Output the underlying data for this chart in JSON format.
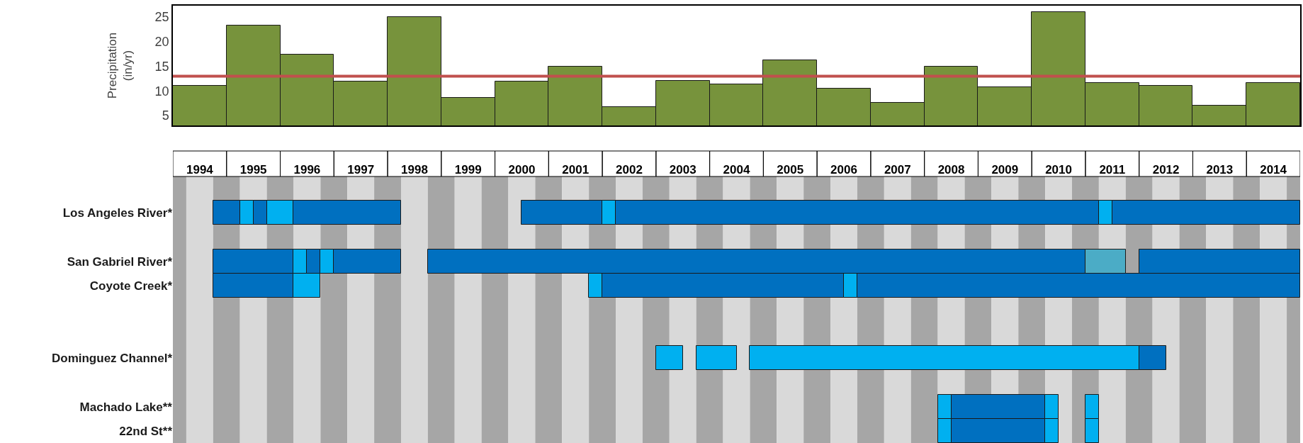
{
  "chart_data": [
    {
      "type": "bar",
      "ylabel": "Precipitation\n(in/yr)",
      "categories": [
        null,
        null,
        null,
        null,
        null,
        null,
        null,
        null,
        null,
        null,
        null,
        null,
        null,
        null,
        null,
        null,
        null,
        null,
        null,
        null,
        null
      ],
      "values": [
        11.0,
        23.3,
        17.4,
        11.9,
        25.0,
        8.6,
        11.9,
        14.9,
        6.7,
        12.1,
        11.3,
        16.2,
        10.5,
        7.6,
        14.9,
        10.8,
        26.0,
        11.6,
        11.0,
        7.0,
        11.6
      ],
      "color": "#77933c",
      "ylim": [
        3,
        27.3
      ],
      "yticks": [
        5,
        10,
        15,
        20,
        25
      ],
      "tick_labels": "y",
      "ref_lines": [
        {
          "axis": "y",
          "value": 13,
          "color": "#c0504d"
        }
      ]
    },
    {
      "type": "bar",
      "orientation": "horizontal",
      "categories": [
        null,
        "Los Angeles River*",
        null,
        "San Gabriel River*",
        "Coyote Creek*",
        null,
        null,
        "Dominguez Channel*",
        null,
        "Machado Lake**",
        "22nd St**"
      ],
      "xlim": [
        1994,
        2015
      ],
      "xticks": [
        {
          "value": 1994.5,
          "label": "1994"
        },
        {
          "value": 1995.5,
          "label": "1995"
        },
        {
          "value": 1996.5,
          "label": "1996"
        },
        {
          "value": 1997.5,
          "label": "1997"
        },
        {
          "value": 1998.5,
          "label": "1998"
        },
        {
          "value": 1999.5,
          "label": "1999"
        },
        {
          "value": 2000.5,
          "label": "2000"
        },
        {
          "value": 2001.5,
          "label": "2001"
        },
        {
          "value": 2002.5,
          "label": "2002"
        },
        {
          "value": 2003.5,
          "label": "2003"
        },
        {
          "value": 2004.5,
          "label": "2004"
        },
        {
          "value": 2005.5,
          "label": "2005"
        },
        {
          "value": 2006.5,
          "label": "2006"
        },
        {
          "value": 2007.5,
          "label": "2007"
        },
        {
          "value": 2008.5,
          "label": "2008"
        },
        {
          "value": 2009.5,
          "label": "2009"
        },
        {
          "value": 2010.5,
          "label": "2010"
        },
        {
          "value": 2011.5,
          "label": "2011"
        },
        {
          "value": 2012.5,
          "label": "2012"
        },
        {
          "value": 2013.5,
          "label": "2013"
        },
        {
          "value": 2014.5,
          "label": "2014"
        }
      ],
      "series": [
        {
          "values": [
            null,
            0.5,
            null,
            1.5,
            1.5,
            null,
            null,
            0.5,
            null,
            0.25,
            0.25
          ],
          "base": [
            null,
            1994.75,
            null,
            1994.75,
            1994.75,
            null,
            null,
            2003.0,
            null,
            2008.25,
            2008.25
          ],
          "colors": [
            null,
            "#0070c0",
            null,
            "#0070c0",
            "#0070c0",
            null,
            null,
            "#00b0f0",
            null,
            "#00b0f0",
            "#00b0f0"
          ]
        },
        {
          "values": [
            null,
            0.25,
            null,
            0.25,
            0.5,
            null,
            null,
            0.75,
            null,
            1.75,
            1.75
          ],
          "base": [
            null,
            1995.25,
            null,
            1996.25,
            1996.25,
            null,
            null,
            2003.75,
            null,
            2008.5,
            2008.5
          ],
          "colors": [
            null,
            "#00b0f0",
            null,
            "#00b0f0",
            "#00b0f0",
            null,
            null,
            "#00b0f0",
            null,
            "#0070c0",
            "#0070c0"
          ]
        },
        {
          "values": [
            null,
            0.25,
            null,
            0.25,
            0.25,
            null,
            null,
            7.25,
            null,
            0.25,
            0.25
          ],
          "base": [
            null,
            1995.5,
            null,
            1996.5,
            2001.75,
            null,
            null,
            2004.75,
            null,
            2010.25,
            2010.25
          ],
          "colors": [
            null,
            "#0070c0",
            null,
            "#0070c0",
            "#00b0f0",
            null,
            null,
            "#00b0f0",
            null,
            "#00b0f0",
            "#00b0f0"
          ]
        },
        {
          "values": [
            null,
            0.5,
            null,
            0.25,
            4.5,
            null,
            null,
            0.5,
            null,
            0.25,
            0.25
          ],
          "base": [
            null,
            1995.75,
            null,
            1996.75,
            2002.0,
            null,
            null,
            2012.0,
            null,
            2011.0,
            2011.0
          ],
          "colors": [
            null,
            "#00b0f0",
            null,
            "#00b0f0",
            "#0070c0",
            null,
            null,
            "#0070c0",
            null,
            "#00b0f0",
            "#00b0f0"
          ]
        },
        {
          "values": [
            null,
            2.0,
            null,
            1.25,
            0.25,
            null,
            null,
            null,
            null,
            null,
            null
          ],
          "base": [
            null,
            1996.25,
            null,
            1997.0,
            2006.5,
            null,
            null,
            null,
            null,
            null,
            null
          ],
          "colors": [
            null,
            "#0070c0",
            null,
            "#0070c0",
            "#00b0f0",
            null,
            null,
            null,
            null,
            null,
            null
          ]
        },
        {
          "values": [
            null,
            1.5,
            null,
            12.25,
            8.25,
            null,
            null,
            null,
            null,
            null,
            null
          ],
          "base": [
            null,
            2000.5,
            null,
            1998.75,
            2006.75,
            null,
            null,
            null,
            null,
            null,
            null
          ],
          "colors": [
            null,
            "#0070c0",
            null,
            "#0070c0",
            "#0070c0",
            null,
            null,
            null,
            null,
            null,
            null
          ]
        },
        {
          "values": [
            null,
            0.25,
            null,
            0.75,
            null,
            null,
            null,
            null,
            null,
            null,
            null
          ],
          "base": [
            null,
            2002.0,
            null,
            2011.0,
            null,
            null,
            null,
            null,
            null,
            null,
            null
          ],
          "colors": [
            null,
            "#00b0f0",
            null,
            "#4bacc6",
            null,
            null,
            null,
            null,
            null,
            null,
            null
          ]
        },
        {
          "values": [
            null,
            9.0,
            null,
            3.0,
            null,
            null,
            null,
            null,
            null,
            null,
            null
          ],
          "base": [
            null,
            2002.25,
            null,
            2012.0,
            null,
            null,
            null,
            null,
            null,
            null,
            null
          ],
          "colors": [
            null,
            "#0070c0",
            null,
            "#0070c0",
            null,
            null,
            null,
            null,
            null,
            null,
            null
          ]
        },
        {
          "values": [
            null,
            0.25,
            null,
            null,
            null,
            null,
            null,
            null,
            null,
            null,
            null
          ],
          "base": [
            null,
            2011.25,
            null,
            null,
            null,
            null,
            null,
            null,
            null,
            null,
            null
          ],
          "colors": [
            null,
            "#00b0f0",
            null,
            null,
            null,
            null,
            null,
            null,
            null,
            null,
            null
          ]
        },
        {
          "values": [
            null,
            3.5,
            null,
            null,
            null,
            null,
            null,
            null,
            null,
            null,
            null
          ],
          "base": [
            null,
            2011.5,
            null,
            null,
            null,
            null,
            null,
            null,
            null,
            null,
            null
          ],
          "colors": [
            null,
            "#0070c0",
            null,
            null,
            null,
            null,
            null,
            null,
            null,
            null,
            null
          ]
        }
      ],
      "bands": [
        {
          "axis": "x",
          "from": 1994,
          "to": 1994.25,
          "color": "#a6a6a6"
        },
        {
          "axis": "x",
          "from": 1994.25,
          "to": 1994.75,
          "color": "#d9d9d9"
        },
        {
          "axis": "x",
          "from": 1994.75,
          "to": 1995.25,
          "color": "#a6a6a6"
        },
        {
          "axis": "x",
          "from": 1995.25,
          "to": 1995.75,
          "color": "#d9d9d9"
        },
        {
          "axis": "x",
          "from": 1995.75,
          "to": 1996.25,
          "color": "#a6a6a6"
        },
        {
          "axis": "x",
          "from": 1996.25,
          "to": 1996.75,
          "color": "#d9d9d9"
        },
        {
          "axis": "x",
          "from": 1996.75,
          "to": 1997.25,
          "color": "#a6a6a6"
        },
        {
          "axis": "x",
          "from": 1997.25,
          "to": 1997.75,
          "color": "#d9d9d9"
        },
        {
          "axis": "x",
          "from": 1997.75,
          "to": 1998.25,
          "color": "#a6a6a6"
        },
        {
          "axis": "x",
          "from": 1998.25,
          "to": 1998.75,
          "color": "#d9d9d9"
        },
        {
          "axis": "x",
          "from": 1998.75,
          "to": 1999.25,
          "color": "#a6a6a6"
        },
        {
          "axis": "x",
          "from": 1999.25,
          "to": 1999.75,
          "color": "#d9d9d9"
        },
        {
          "axis": "x",
          "from": 1999.75,
          "to": 2000.25,
          "color": "#a6a6a6"
        },
        {
          "axis": "x",
          "from": 2000.25,
          "to": 2000.75,
          "color": "#d9d9d9"
        },
        {
          "axis": "x",
          "from": 2000.75,
          "to": 2001.25,
          "color": "#a6a6a6"
        },
        {
          "axis": "x",
          "from": 2001.25,
          "to": 2001.75,
          "color": "#d9d9d9"
        },
        {
          "axis": "x",
          "from": 2001.75,
          "to": 2002.25,
          "color": "#a6a6a6"
        },
        {
          "axis": "x",
          "from": 2002.25,
          "to": 2002.75,
          "color": "#d9d9d9"
        },
        {
          "axis": "x",
          "from": 2002.75,
          "to": 2003.25,
          "color": "#a6a6a6"
        },
        {
          "axis": "x",
          "from": 2003.25,
          "to": 2003.75,
          "color": "#d9d9d9"
        },
        {
          "axis": "x",
          "from": 2003.75,
          "to": 2004.25,
          "color": "#a6a6a6"
        },
        {
          "axis": "x",
          "from": 2004.25,
          "to": 2004.75,
          "color": "#d9d9d9"
        },
        {
          "axis": "x",
          "from": 2004.75,
          "to": 2005.25,
          "color": "#a6a6a6"
        },
        {
          "axis": "x",
          "from": 2005.25,
          "to": 2005.75,
          "color": "#d9d9d9"
        },
        {
          "axis": "x",
          "from": 2005.75,
          "to": 2006.25,
          "color": "#a6a6a6"
        },
        {
          "axis": "x",
          "from": 2006.25,
          "to": 2006.75,
          "color": "#d9d9d9"
        },
        {
          "axis": "x",
          "from": 2006.75,
          "to": 2007.25,
          "color": "#a6a6a6"
        },
        {
          "axis": "x",
          "from": 2007.25,
          "to": 2007.75,
          "color": "#d9d9d9"
        },
        {
          "axis": "x",
          "from": 2007.75,
          "to": 2008.25,
          "color": "#a6a6a6"
        },
        {
          "axis": "x",
          "from": 2008.25,
          "to": 2008.75,
          "color": "#d9d9d9"
        },
        {
          "axis": "x",
          "from": 2008.75,
          "to": 2009.25,
          "color": "#a6a6a6"
        },
        {
          "axis": "x",
          "from": 2009.25,
          "to": 2009.75,
          "color": "#d9d9d9"
        },
        {
          "axis": "x",
          "from": 2009.75,
          "to": 2010.25,
          "color": "#a6a6a6"
        },
        {
          "axis": "x",
          "from": 2010.25,
          "to": 2010.75,
          "color": "#d9d9d9"
        },
        {
          "axis": "x",
          "from": 2010.75,
          "to": 2011.25,
          "color": "#a6a6a6"
        },
        {
          "axis": "x",
          "from": 2011.25,
          "to": 2011.75,
          "color": "#d9d9d9"
        },
        {
          "axis": "x",
          "from": 2011.75,
          "to": 2012.25,
          "color": "#a6a6a6"
        },
        {
          "axis": "x",
          "from": 2012.25,
          "to": 2012.75,
          "color": "#d9d9d9"
        },
        {
          "axis": "x",
          "from": 2012.75,
          "to": 2013.25,
          "color": "#a6a6a6"
        },
        {
          "axis": "x",
          "from": 2013.25,
          "to": 2013.75,
          "color": "#d9d9d9"
        },
        {
          "axis": "x",
          "from": 2013.75,
          "to": 2014.25,
          "color": "#a6a6a6"
        },
        {
          "axis": "x",
          "from": 2014.25,
          "to": 2014.75,
          "color": "#d9d9d9"
        },
        {
          "axis": "x",
          "from": 2014.75,
          "to": 2015,
          "color": "#a6a6a6"
        }
      ]
    }
  ]
}
